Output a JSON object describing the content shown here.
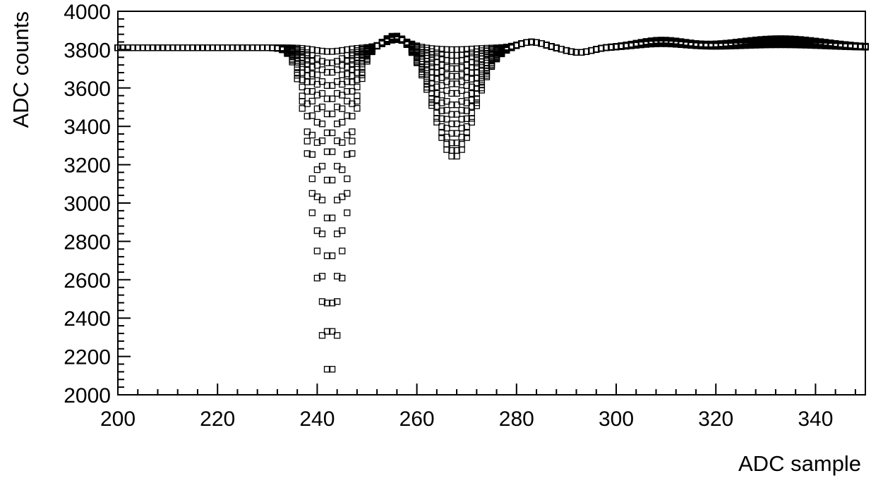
{
  "chart_data": {
    "type": "scatter",
    "title": "",
    "xlabel": "ADC sample",
    "ylabel": "ADC counts",
    "xlim": [
      200,
      350
    ],
    "ylim": [
      2000,
      4000
    ],
    "xticks": [
      200,
      220,
      240,
      260,
      280,
      300,
      320,
      340
    ],
    "yticks": [
      2000,
      2200,
      2400,
      2600,
      2800,
      3000,
      3200,
      3400,
      3600,
      3800,
      4000
    ],
    "grid": false,
    "marker": "open-square",
    "baseline": 3810,
    "series_note_count": 14,
    "series": [
      {
        "amp1": 20,
        "amp2": 10,
        "x0": 200,
        "x1": 350
      },
      {
        "amp1": 80,
        "amp2": 40,
        "x0": 200,
        "x1": 350
      },
      {
        "amp1": 130,
        "amp2": 70,
        "x0": 200,
        "x1": 350
      },
      {
        "amp1": 200,
        "amp2": 110,
        "x0": 200,
        "x1": 350
      },
      {
        "amp1": 270,
        "amp2": 150,
        "x0": 200,
        "x1": 350
      },
      {
        "amp1": 350,
        "amp2": 190,
        "x0": 200,
        "x1": 350
      },
      {
        "amp1": 450,
        "amp2": 240,
        "x0": 200,
        "x1": 350
      },
      {
        "amp1": 550,
        "amp2": 300,
        "x0": 200,
        "x1": 350
      },
      {
        "amp1": 700,
        "amp2": 350,
        "x0": 200,
        "x1": 350
      },
      {
        "amp1": 900,
        "amp2": 400,
        "x0": 200,
        "x1": 350
      },
      {
        "amp1": 1100,
        "amp2": 450,
        "x0": 200,
        "x1": 350
      },
      {
        "amp1": 1350,
        "amp2": 500,
        "x0": 200,
        "x1": 350
      },
      {
        "amp1": 1500,
        "amp2": 540,
        "x0": 200,
        "x1": 350
      },
      {
        "amp1": 1700,
        "amp2": 570,
        "x0": 200,
        "x1": 350
      }
    ],
    "waveform": {
      "dip1_center": 242.5,
      "dip1_sigma": 3.0,
      "rise1_center": 256,
      "rise1_height": 70,
      "rise1_sigma": 2.5,
      "dip2_center": 267.5,
      "dip2_sigma": 4.0,
      "rise2_center": 283,
      "rise2_height": 30,
      "rise2_sigma": 2.5,
      "dip3_center": 292.5,
      "dip3_depth": 25,
      "dip3_sigma": 2.5,
      "rise3_center": 309,
      "rise3_height": 40,
      "rise3_sigma": 5.0,
      "rise4_center": 333,
      "rise4_height": 50,
      "rise4_sigma": 9.0
    }
  }
}
